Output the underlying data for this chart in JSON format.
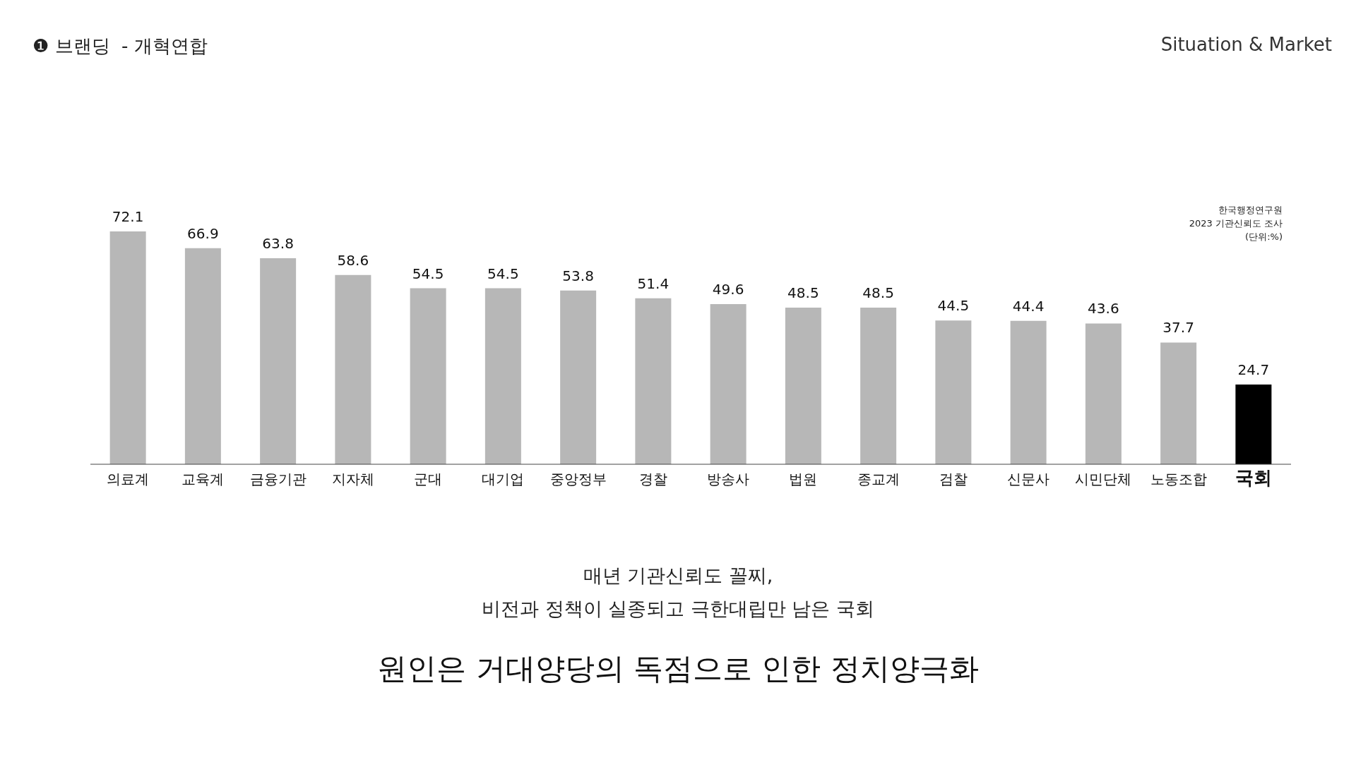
{
  "chart_data": {
    "type": "bar",
    "title": "❶ 브랜딩  - 개혁연합",
    "categories": [
      "의료계",
      "교육계",
      "금융기관",
      "지자체",
      "군대",
      "대기업",
      "중앙정부",
      "경찰",
      "방송사",
      "법원",
      "종교계",
      "검찰",
      "신문사",
      "시민단체",
      "노동조합",
      "국회"
    ],
    "values": [
      72.1,
      66.9,
      63.8,
      58.6,
      54.5,
      54.5,
      53.8,
      51.4,
      49.6,
      48.5,
      48.5,
      44.5,
      44.4,
      43.6,
      37.7,
      24.7
    ],
    "colors": [
      "#b7b7b7",
      "#b7b7b7",
      "#b7b7b7",
      "#b7b7b7",
      "#b7b7b7",
      "#b7b7b7",
      "#b7b7b7",
      "#b7b7b7",
      "#b7b7b7",
      "#b7b7b7",
      "#b7b7b7",
      "#b7b7b7",
      "#b7b7b7",
      "#b7b7b7",
      "#b7b7b7",
      "#000000"
    ],
    "data_labels": true,
    "grid": false,
    "legend": false,
    "tick_labels": "x",
    "annotations": [
      "Situation & Market",
      "한국행정연구원\n2023 기관신뢰도 조사\n(단위:%)",
      "매년 기관신뢰도 꼴찌,",
      "비전과 정책이 실종되고 극한대립만 남은 국회",
      "원인은 거대양당의 독점으로 인한 정치양극화"
    ]
  }
}
